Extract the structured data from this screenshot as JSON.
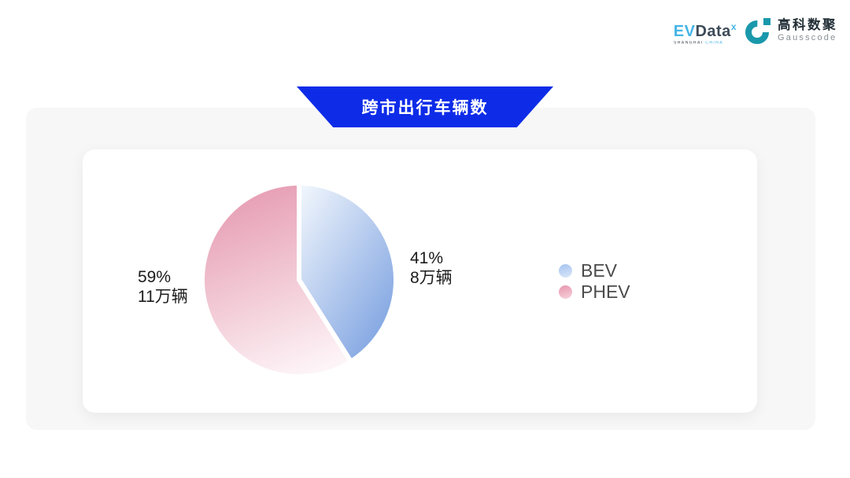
{
  "header_banner": {
    "title": "跨市出行车辆数"
  },
  "logos": {
    "evdata": {
      "part1": "EV",
      "part2": "Data",
      "sup": "x",
      "sub_left": "SHANGHAI",
      "sub_right": "CHINA",
      "blue": "#45b5e6",
      "dark": "#3d4a58"
    },
    "gausscode": {
      "cn": "高科数聚",
      "en": "Gausscode",
      "teal": "#1a98ab"
    }
  },
  "colors": {
    "banner_blue": "#0e2ce8",
    "panel_gray": "#f7f7f8",
    "card_white": "#ffffff",
    "label_text": "#1b1b1b",
    "legend_text": "#4b4b4b"
  },
  "chart_data": {
    "type": "pie",
    "title": "跨市出行车辆数",
    "unit": "万辆",
    "start_angle": "top",
    "direction": "clockwise",
    "legend_position": "right",
    "series": [
      {
        "name": "BEV",
        "value": 8,
        "percent": 41,
        "label_percent": "41%",
        "label_value": "8万辆",
        "slice_gradient": [
          "#f4f8fd",
          "#7aa0e0"
        ],
        "legend_dot_gradient": [
          "#a6c3ef",
          "#d9e6f9"
        ]
      },
      {
        "name": "PHEV",
        "value": 11,
        "percent": 59,
        "label_percent": "59%",
        "label_value": "11万辆",
        "slice_gradient": [
          "#e69cb2",
          "#fdf4f7"
        ],
        "legend_dot_gradient": [
          "#e795ac",
          "#f7d3dd"
        ]
      }
    ]
  }
}
